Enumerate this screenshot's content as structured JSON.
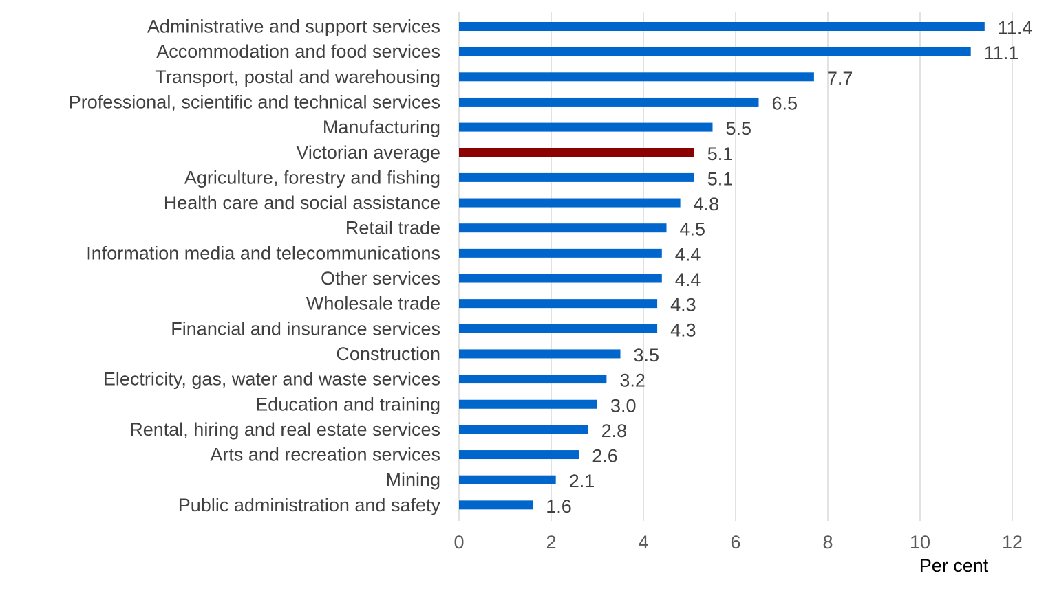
{
  "chart_data": {
    "type": "bar",
    "orientation": "horizontal",
    "categories": [
      "Administrative and support services",
      "Accommodation and food services",
      "Transport, postal and warehousing",
      "Professional, scientific and technical services",
      "Manufacturing",
      "Victorian average",
      "Agriculture, forestry and fishing",
      "Health care and social assistance",
      "Retail trade",
      "Information media and telecommunications",
      "Other services",
      "Wholesale trade",
      "Financial and insurance services",
      "Construction",
      "Electricity, gas, water and waste services",
      "Education and training",
      "Rental, hiring and real estate services",
      "Arts and recreation services",
      "Mining",
      "Public administration and safety"
    ],
    "values": [
      11.4,
      11.1,
      7.7,
      6.5,
      5.5,
      5.1,
      5.1,
      4.8,
      4.5,
      4.4,
      4.4,
      4.3,
      4.3,
      3.5,
      3.2,
      3.0,
      2.8,
      2.6,
      2.1,
      1.6
    ],
    "value_labels": [
      "11.4",
      "11.1",
      "7.7",
      "6.5",
      "5.5",
      "5.1",
      "5.1",
      "4.8",
      "4.5",
      "4.4",
      "4.4",
      "4.3",
      "4.3",
      "3.5",
      "3.2",
      "3.0",
      "2.8",
      "2.6",
      "2.1",
      "1.6"
    ],
    "highlight_category": "Victorian average",
    "xlim": [
      0,
      12
    ],
    "x_ticks": [
      "0",
      "2",
      "4",
      "6",
      "8",
      "10",
      "12"
    ],
    "xlabel": "Per cent",
    "ylabel": "",
    "title": "",
    "grid": "vertical",
    "legend": "none",
    "colors": {
      "bar": "#0066cc",
      "highlight": "#8b0000",
      "text": "#404040",
      "tick_text": "#595959",
      "axis_title": "#000000",
      "grid": "#d9d9d9"
    }
  }
}
